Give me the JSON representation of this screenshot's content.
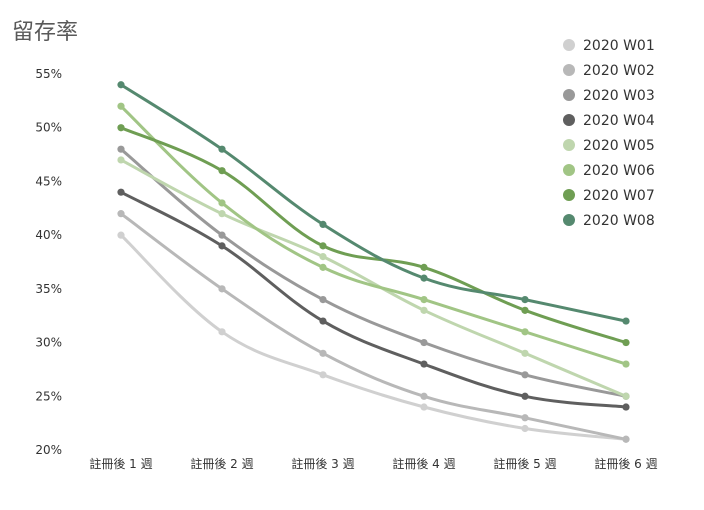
{
  "chart_data": {
    "type": "line",
    "title": "留存率",
    "xlabel": "",
    "ylabel": "",
    "categories": [
      "註冊後 1 週",
      "註冊後 2 週",
      "註冊後 3 週",
      "註冊後 4 週",
      "註冊後 5 週",
      "註冊後 6 週"
    ],
    "y_ticks": [
      "20%",
      "25%",
      "30%",
      "35%",
      "40%",
      "45%",
      "50%",
      "55%"
    ],
    "ylim": [
      0.2,
      0.55
    ],
    "grid": false,
    "legend_position": "top-right",
    "series": [
      {
        "name": "2020 W01",
        "color": "#d0d0d0",
        "values": [
          0.4,
          0.31,
          0.27,
          0.24,
          0.22,
          0.21
        ]
      },
      {
        "name": "2020 W02",
        "color": "#b8b8b8",
        "values": [
          0.42,
          0.35,
          0.29,
          0.25,
          0.23,
          0.21
        ]
      },
      {
        "name": "2020 W03",
        "color": "#999999",
        "values": [
          0.48,
          0.4,
          0.34,
          0.3,
          0.27,
          0.25
        ]
      },
      {
        "name": "2020 W04",
        "color": "#5f5f5f",
        "values": [
          0.44,
          0.39,
          0.32,
          0.28,
          0.25,
          0.24
        ]
      },
      {
        "name": "2020 W05",
        "color": "#bfd6ae",
        "values": [
          0.47,
          0.42,
          0.38,
          0.33,
          0.29,
          0.25
        ]
      },
      {
        "name": "2020 W06",
        "color": "#a1c585",
        "values": [
          0.52,
          0.43,
          0.37,
          0.34,
          0.31,
          0.28
        ]
      },
      {
        "name": "2020 W07",
        "color": "#6f9e53",
        "values": [
          0.5,
          0.46,
          0.39,
          0.37,
          0.33,
          0.3
        ]
      },
      {
        "name": "2020 W08",
        "color": "#55896f",
        "values": [
          0.54,
          0.48,
          0.41,
          0.36,
          0.34,
          0.32
        ]
      }
    ]
  }
}
